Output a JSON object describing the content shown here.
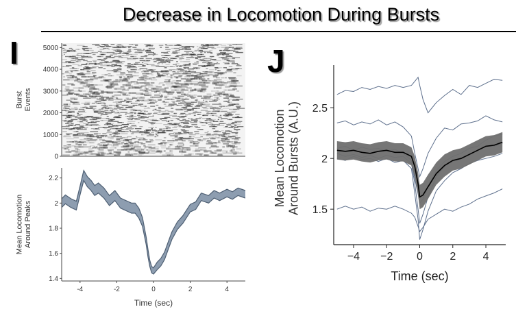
{
  "title": "Decrease in Locomotion During Bursts",
  "panel_labels": [
    "I",
    "J"
  ],
  "colors": {
    "raster_ink": "#2a2a2a",
    "band_fill": "#8d9db0",
    "band_edge": "#4e5f73",
    "individual_lines": "#5d6f8c",
    "sem_band": "#6f6f6f",
    "mean_line": "#000000"
  },
  "chart_data": [
    {
      "id": "I-top",
      "type": "heatmap",
      "title": "",
      "xlabel": "",
      "ylabel": "Burst\nEvents",
      "xlim": [
        -5,
        5
      ],
      "ylim": [
        0,
        5200
      ],
      "y_ticks": [
        0,
        1000,
        2000,
        3000,
        4000,
        5000
      ],
      "y_tick_labels": [
        "0",
        "1000",
        "2000",
        "3000",
        "4000",
        "5000"
      ]
    },
    {
      "id": "I-bottom",
      "type": "area",
      "title": "",
      "xlabel": "Time (sec)",
      "ylabel": "Mean Locomotion\nAround Peaks",
      "xlim": [
        -5,
        5
      ],
      "ylim": [
        1.38,
        2.28
      ],
      "x_ticks": [
        -4,
        -2,
        0,
        2,
        4
      ],
      "x_tick_labels": [
        "-4",
        "-2",
        "0",
        "2",
        "4"
      ],
      "y_ticks": [
        1.4,
        1.6,
        1.8,
        2.0,
        2.2
      ],
      "y_tick_labels": [
        "1.4",
        "1.6",
        "1.8",
        "2",
        "2.2"
      ],
      "series": [
        {
          "x": [
            -5,
            -4.8,
            -4.5,
            -4.2,
            -4.0,
            -3.8,
            -3.6,
            -3.4,
            -3.2,
            -3.0,
            -2.7,
            -2.4,
            -2.1,
            -1.8,
            -1.5,
            -1.2,
            -1.0,
            -0.8,
            -0.6,
            -0.4,
            -0.3,
            -0.2,
            -0.1,
            0,
            0.2,
            0.4,
            0.6,
            0.8,
            1.0,
            1.3,
            1.6,
            2.0,
            2.3,
            2.6,
            3.0,
            3.3,
            3.6,
            4.0,
            4.3,
            4.6,
            5.0
          ],
          "mean": [
            2.0,
            2.03,
            2.0,
            1.98,
            2.1,
            2.22,
            2.17,
            2.14,
            2.1,
            2.12,
            2.08,
            2.02,
            2.06,
            2.0,
            1.98,
            1.96,
            1.96,
            1.92,
            1.85,
            1.7,
            1.6,
            1.52,
            1.47,
            1.46,
            1.5,
            1.53,
            1.58,
            1.66,
            1.74,
            1.82,
            1.87,
            1.96,
            1.98,
            2.05,
            2.03,
            2.07,
            2.05,
            2.08,
            2.06,
            2.09,
            2.07
          ],
          "sem": [
            0.035,
            0.035,
            0.035,
            0.035,
            0.035,
            0.04,
            0.04,
            0.04,
            0.04,
            0.04,
            0.04,
            0.04,
            0.04,
            0.04,
            0.04,
            0.04,
            0.04,
            0.04,
            0.035,
            0.03,
            0.03,
            0.025,
            0.025,
            0.025,
            0.03,
            0.03,
            0.03,
            0.03,
            0.03,
            0.03,
            0.03,
            0.03,
            0.03,
            0.03,
            0.03,
            0.03,
            0.03,
            0.03,
            0.03,
            0.03,
            0.03
          ]
        }
      ]
    },
    {
      "id": "J",
      "type": "line",
      "title": "",
      "xlabel": "Time (sec)",
      "ylabel": "Mean Locomotion\nAround Bursts (A.U.)",
      "xlim": [
        -5.2,
        5.2
      ],
      "ylim": [
        1.15,
        2.92
      ],
      "x_ticks": [
        -4,
        -2,
        0,
        2,
        4
      ],
      "x_tick_labels": [
        "−4",
        "−2",
        "0",
        "2",
        "4"
      ],
      "y_ticks": [
        1.5,
        2.0,
        2.5
      ],
      "y_tick_labels": [
        "1.5",
        "2",
        "2.5"
      ],
      "x": [
        -5,
        -4.5,
        -4,
        -3.5,
        -3,
        -2.5,
        -2,
        -1.5,
        -1,
        -0.5,
        -0.3,
        -0.1,
        0,
        0.2,
        0.5,
        1,
        1.5,
        2,
        2.5,
        3,
        3.5,
        4,
        4.5,
        5
      ],
      "mean": {
        "values": [
          2.08,
          2.07,
          2.08,
          2.06,
          2.05,
          2.07,
          2.08,
          2.06,
          2.06,
          2.02,
          1.92,
          1.75,
          1.62,
          1.64,
          1.72,
          1.85,
          1.93,
          1.98,
          2.0,
          2.04,
          2.08,
          2.12,
          2.13,
          2.16
        ],
        "sem": [
          0.09,
          0.09,
          0.09,
          0.09,
          0.09,
          0.09,
          0.09,
          0.09,
          0.09,
          0.09,
          0.1,
          0.11,
          0.12,
          0.12,
          0.12,
          0.11,
          0.11,
          0.1,
          0.1,
          0.1,
          0.1,
          0.1,
          0.1,
          0.1
        ]
      },
      "individuals": [
        [
          2.63,
          2.67,
          2.66,
          2.7,
          2.68,
          2.71,
          2.69,
          2.72,
          2.7,
          2.72,
          2.76,
          2.8,
          2.72,
          2.58,
          2.45,
          2.55,
          2.62,
          2.68,
          2.63,
          2.72,
          2.7,
          2.74,
          2.78,
          2.77
        ],
        [
          2.35,
          2.37,
          2.33,
          2.36,
          2.34,
          2.38,
          2.33,
          2.36,
          2.31,
          2.22,
          2.05,
          1.9,
          1.82,
          1.9,
          2.05,
          2.2,
          2.3,
          2.28,
          2.34,
          2.35,
          2.37,
          2.42,
          2.38,
          2.36
        ],
        [
          2.1,
          2.12,
          2.08,
          2.11,
          2.09,
          2.1,
          2.07,
          2.09,
          2.05,
          1.98,
          1.8,
          1.65,
          1.56,
          1.6,
          1.72,
          1.88,
          1.97,
          2.02,
          2.05,
          2.1,
          2.12,
          2.18,
          2.22,
          2.24
        ],
        [
          2.05,
          2.02,
          2.04,
          2.01,
          2.03,
          2.0,
          2.03,
          2.01,
          2.02,
          1.95,
          1.75,
          1.5,
          1.36,
          1.45,
          1.62,
          1.82,
          1.92,
          1.97,
          2.0,
          2.04,
          2.08,
          2.12,
          2.12,
          2.15
        ],
        [
          2.0,
          1.98,
          2.02,
          1.99,
          2.0,
          1.97,
          2.0,
          1.96,
          1.98,
          1.9,
          1.65,
          1.4,
          1.2,
          1.3,
          1.48,
          1.68,
          1.78,
          1.86,
          1.9,
          1.95,
          1.98,
          2.0,
          2.02,
          2.05
        ],
        [
          1.5,
          1.53,
          1.5,
          1.52,
          1.48,
          1.51,
          1.5,
          1.53,
          1.5,
          1.46,
          1.42,
          1.33,
          1.28,
          1.32,
          1.4,
          1.45,
          1.5,
          1.48,
          1.52,
          1.55,
          1.6,
          1.63,
          1.66,
          1.7
        ]
      ]
    }
  ]
}
